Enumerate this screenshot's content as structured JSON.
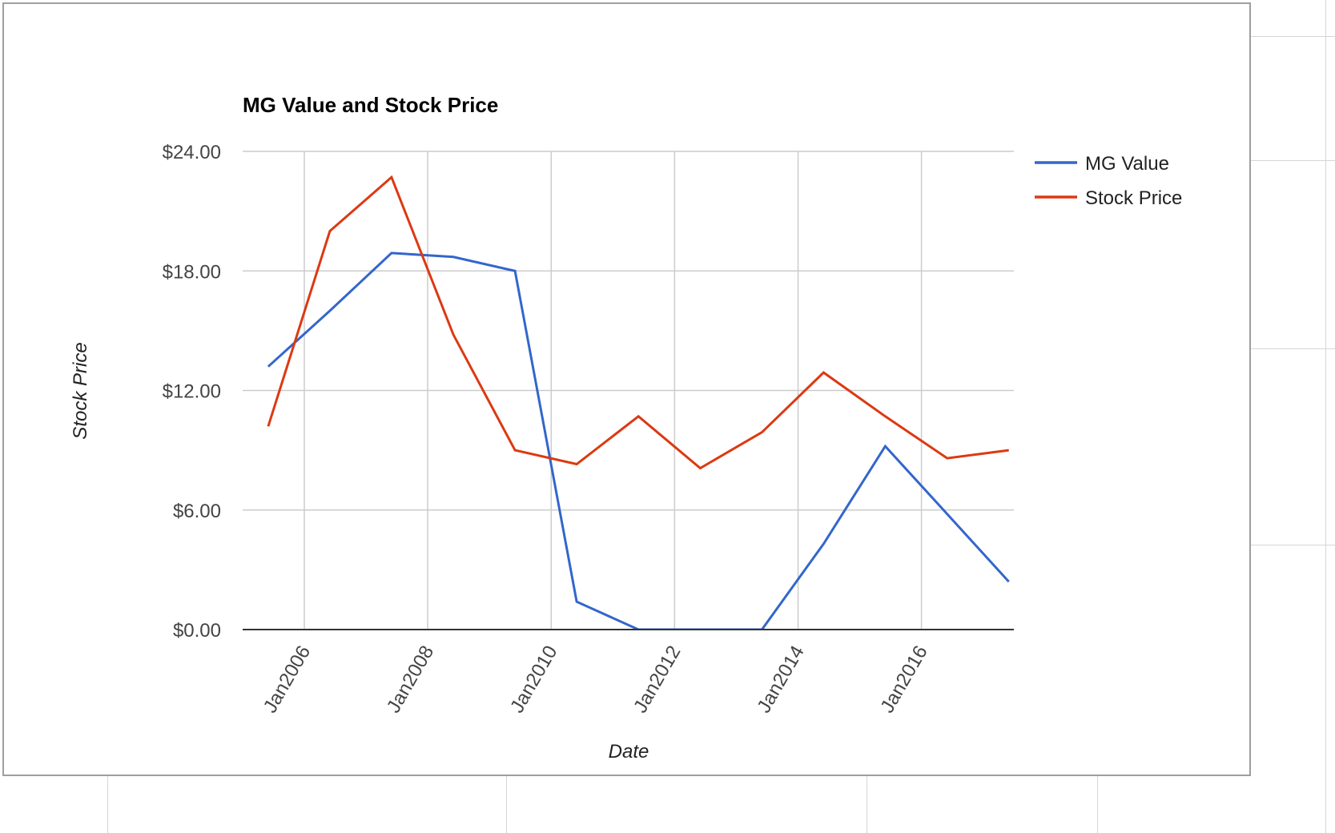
{
  "chart_data": {
    "type": "line",
    "title": "MG Value and Stock Price",
    "xlabel": "Date",
    "ylabel": "Stock Price",
    "x": [
      "2005-06-01",
      "2006-06-01",
      "2007-06-01",
      "2008-06-01",
      "2009-06-01",
      "2010-06-01",
      "2011-06-01",
      "2012-06-01",
      "2013-06-01",
      "2014-06-01",
      "2015-06-01",
      "2016-06-01",
      "2017-06-01"
    ],
    "x_ticks": [
      "Jan2006",
      "Jan2008",
      "Jan2010",
      "Jan2012",
      "Jan2014",
      "Jan2016"
    ],
    "y_ticks": [
      "$0.00",
      "$6.00",
      "$12.00",
      "$18.00",
      "$24.00"
    ],
    "ylim": [
      0,
      24
    ],
    "grid": true,
    "legend_position": "right",
    "series": [
      {
        "name": "MG Value",
        "color": "#3366cc",
        "values": [
          13.2,
          16.0,
          18.9,
          18.7,
          18.0,
          1.4,
          0.0,
          0.0,
          0.0,
          4.3,
          9.2,
          5.8,
          2.4
        ]
      },
      {
        "name": "Stock Price",
        "color": "#dc3912",
        "values": [
          10.2,
          20.0,
          22.7,
          14.8,
          9.0,
          8.3,
          10.7,
          8.1,
          9.9,
          12.9,
          10.7,
          8.6,
          9.0
        ]
      }
    ]
  }
}
